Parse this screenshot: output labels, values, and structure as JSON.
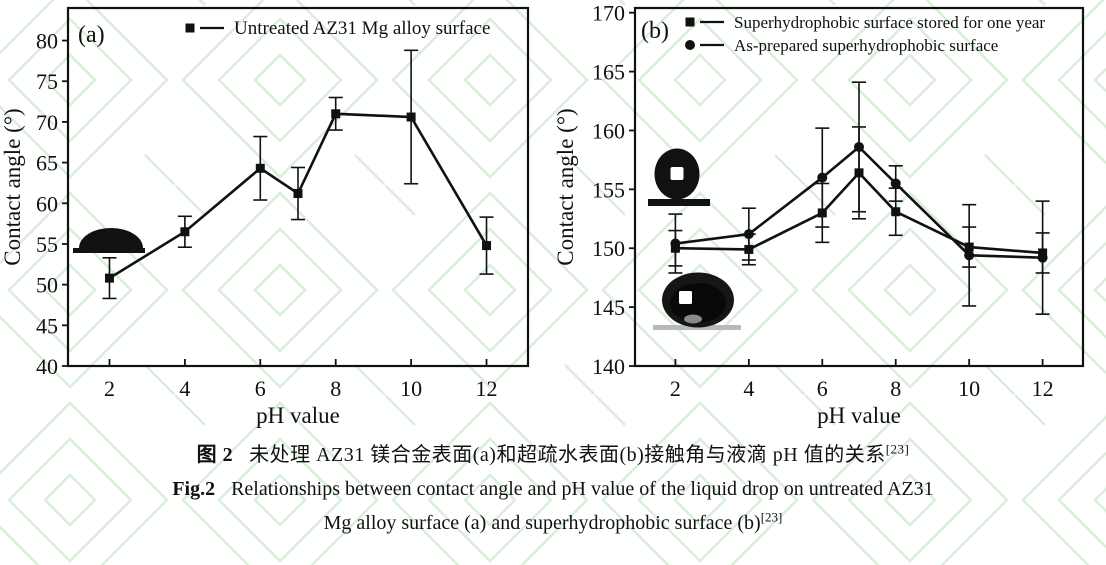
{
  "page": {
    "background": "#ffffff"
  },
  "colors": {
    "line": "#111111",
    "text": "#111111",
    "watermark": "#d9efd9",
    "inset_gray": "#b9b9b9"
  },
  "caption": {
    "zh_label": "图 2",
    "zh_text": "未处理 AZ31 镁合金表面(a)和超疏水表面(b)接触角与液滴 pH 值的关系",
    "en_label": "Fig.2",
    "en_line1": "Relationships between contact angle and pH value of the liquid drop on untreated AZ31",
    "en_line2": "Mg alloy surface (a) and superhydrophobic surface (b)",
    "ref_marker": "[23]"
  },
  "chart_data": [
    {
      "id": "chart-a",
      "type": "line",
      "panel_label": "(a)",
      "xlabel": "pH value",
      "ylabel": "Contact angle (°)",
      "xlim": [
        0.9,
        13.1
      ],
      "ylim": [
        40,
        84
      ],
      "xticks": [
        2,
        4,
        6,
        8,
        10,
        12
      ],
      "yticks": [
        40,
        45,
        50,
        55,
        60,
        65,
        70,
        75,
        80
      ],
      "grid": false,
      "legend_position": "top-inside",
      "x": [
        2,
        4,
        6,
        7,
        8,
        10,
        12
      ],
      "series": [
        {
          "name": "Untreated AZ31 Mg alloy surface",
          "marker": "square",
          "values": [
            50.8,
            56.5,
            64.3,
            61.2,
            71.0,
            70.6,
            54.8
          ],
          "errors": [
            2.5,
            1.9,
            3.9,
            3.2,
            2.0,
            8.2,
            3.5
          ]
        }
      ],
      "insets": [
        "sessile-water-drop-photo"
      ]
    },
    {
      "id": "chart-b",
      "type": "line",
      "panel_label": "(b)",
      "xlabel": "pH value",
      "ylabel": "Contact angle (°)",
      "xlim": [
        0.9,
        13.1
      ],
      "ylim": [
        140,
        170.4
      ],
      "xticks": [
        2,
        4,
        6,
        8,
        10,
        12
      ],
      "yticks": [
        140,
        145,
        150,
        155,
        160,
        165,
        170
      ],
      "grid": false,
      "legend_position": "top-inside",
      "x": [
        2,
        4,
        6,
        7,
        8,
        10,
        12
      ],
      "series": [
        {
          "name": "Superhydrophobic surface stored for one year",
          "marker": "square",
          "values": [
            150.0,
            149.9,
            153.0,
            156.4,
            153.1,
            150.1,
            149.6
          ],
          "errors": [
            1.5,
            1.3,
            2.5,
            3.9,
            2.0,
            1.7,
            1.7
          ]
        },
        {
          "name": "As-prepared superhydrophobic surface",
          "marker": "circle",
          "values": [
            150.4,
            151.2,
            156.0,
            158.6,
            155.5,
            149.4,
            149.2
          ],
          "errors": [
            2.5,
            2.2,
            4.2,
            5.5,
            1.5,
            4.3,
            4.8
          ]
        }
      ],
      "insets": [
        "superhydrophobic-drop-schematic",
        "superhydrophobic-drop-photo"
      ]
    }
  ]
}
